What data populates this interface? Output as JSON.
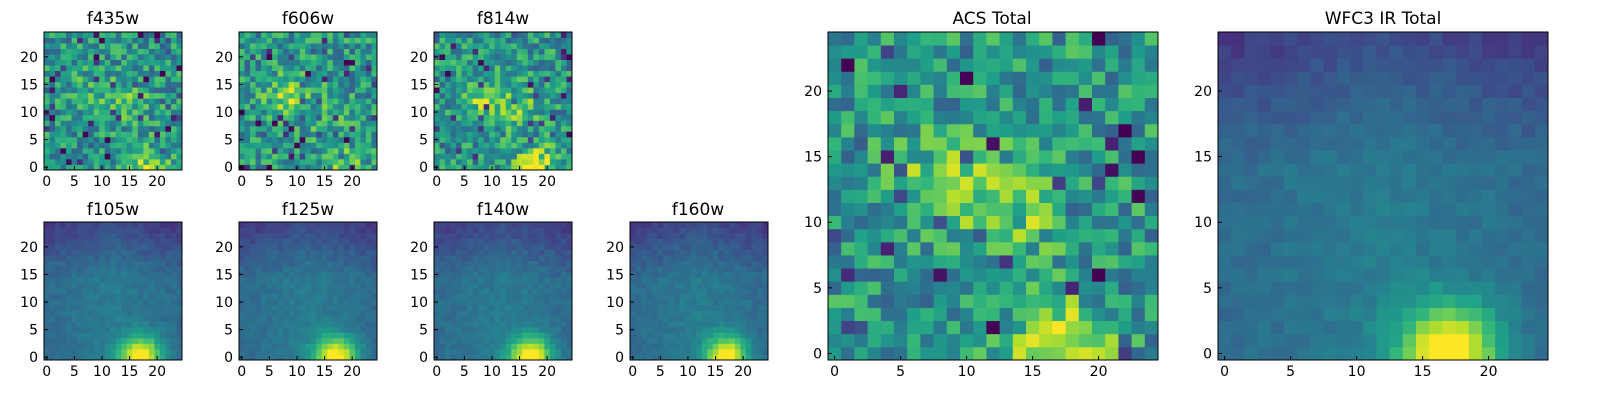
{
  "chart_data": [
    {
      "type": "heatmap",
      "title": "f435w",
      "texture": "noisy",
      "hotspots": [
        [
          15,
          12,
          0.35
        ],
        [
          8,
          14,
          0.25
        ],
        [
          18,
          0,
          0.6
        ]
      ],
      "xlim": [
        0,
        25
      ],
      "ylim": [
        0,
        25
      ],
      "xticks": [
        "0",
        "5",
        "10",
        "15",
        "20"
      ],
      "yticks": [
        "0",
        "5",
        "10",
        "15",
        "20"
      ]
    },
    {
      "type": "heatmap",
      "title": "f606w",
      "texture": "noisy",
      "hotspots": [
        [
          8,
          13,
          0.6
        ],
        [
          15,
          10,
          0.35
        ],
        [
          18,
          0,
          0.5
        ]
      ],
      "xlim": [
        0,
        25
      ],
      "ylim": [
        0,
        25
      ],
      "xticks": [
        "0",
        "5",
        "10",
        "15",
        "20"
      ],
      "yticks": [
        "0",
        "5",
        "10",
        "15",
        "20"
      ]
    },
    {
      "type": "heatmap",
      "title": "f814w",
      "texture": "noisy",
      "hotspots": [
        [
          8,
          12,
          0.55
        ],
        [
          15,
          11,
          0.45
        ],
        [
          18,
          0,
          0.9
        ]
      ],
      "xlim": [
        0,
        25
      ],
      "ylim": [
        0,
        25
      ],
      "xticks": [
        "0",
        "5",
        "10",
        "15",
        "20"
      ],
      "yticks": [
        "0",
        "5",
        "10",
        "15",
        "20"
      ]
    },
    {
      "type": "heatmap",
      "title": "f105w",
      "texture": "smooth",
      "hotspots": [
        [
          17,
          0,
          1.0
        ]
      ],
      "xlim": [
        0,
        25
      ],
      "ylim": [
        0,
        25
      ],
      "xticks": [
        "0",
        "5",
        "10",
        "15",
        "20"
      ],
      "yticks": [
        "0",
        "5",
        "10",
        "15",
        "20"
      ]
    },
    {
      "type": "heatmap",
      "title": "f125w",
      "texture": "smooth",
      "hotspots": [
        [
          17,
          0,
          1.0
        ]
      ],
      "xlim": [
        0,
        25
      ],
      "ylim": [
        0,
        25
      ],
      "xticks": [
        "0",
        "5",
        "10",
        "15",
        "20"
      ],
      "yticks": [
        "0",
        "5",
        "10",
        "15",
        "20"
      ]
    },
    {
      "type": "heatmap",
      "title": "f140w",
      "texture": "smooth",
      "hotspots": [
        [
          17,
          0,
          1.0
        ]
      ],
      "xlim": [
        0,
        25
      ],
      "ylim": [
        0,
        25
      ],
      "xticks": [
        "0",
        "5",
        "10",
        "15",
        "20"
      ],
      "yticks": [
        "0",
        "5",
        "10",
        "15",
        "20"
      ]
    },
    {
      "type": "heatmap",
      "title": "f160w",
      "texture": "smooth",
      "hotspots": [
        [
          17,
          0,
          1.0
        ]
      ],
      "xlim": [
        0,
        25
      ],
      "ylim": [
        0,
        25
      ],
      "xticks": [
        "0",
        "5",
        "10",
        "15",
        "20"
      ],
      "yticks": [
        "0",
        "5",
        "10",
        "15",
        "20"
      ]
    },
    {
      "type": "heatmap",
      "title": "ACS Total",
      "texture": "noisy",
      "hotspots": [
        [
          8,
          13,
          0.55
        ],
        [
          14,
          11,
          0.5
        ],
        [
          17,
          0,
          0.9
        ]
      ],
      "xlim": [
        0,
        25
      ],
      "ylim": [
        0,
        25
      ],
      "xticks": [
        "0",
        "5",
        "10",
        "15",
        "20"
      ],
      "yticks": [
        "0",
        "5",
        "10",
        "15",
        "20"
      ]
    },
    {
      "type": "heatmap",
      "title": "WFC3 IR Total",
      "texture": "smooth",
      "hotspots": [
        [
          17,
          0,
          1.0
        ]
      ],
      "xlim": [
        0,
        25
      ],
      "ylim": [
        0,
        25
      ],
      "xticks": [
        "0",
        "5",
        "10",
        "15",
        "20"
      ],
      "yticks": [
        "0",
        "5",
        "10",
        "15",
        "20"
      ]
    }
  ]
}
